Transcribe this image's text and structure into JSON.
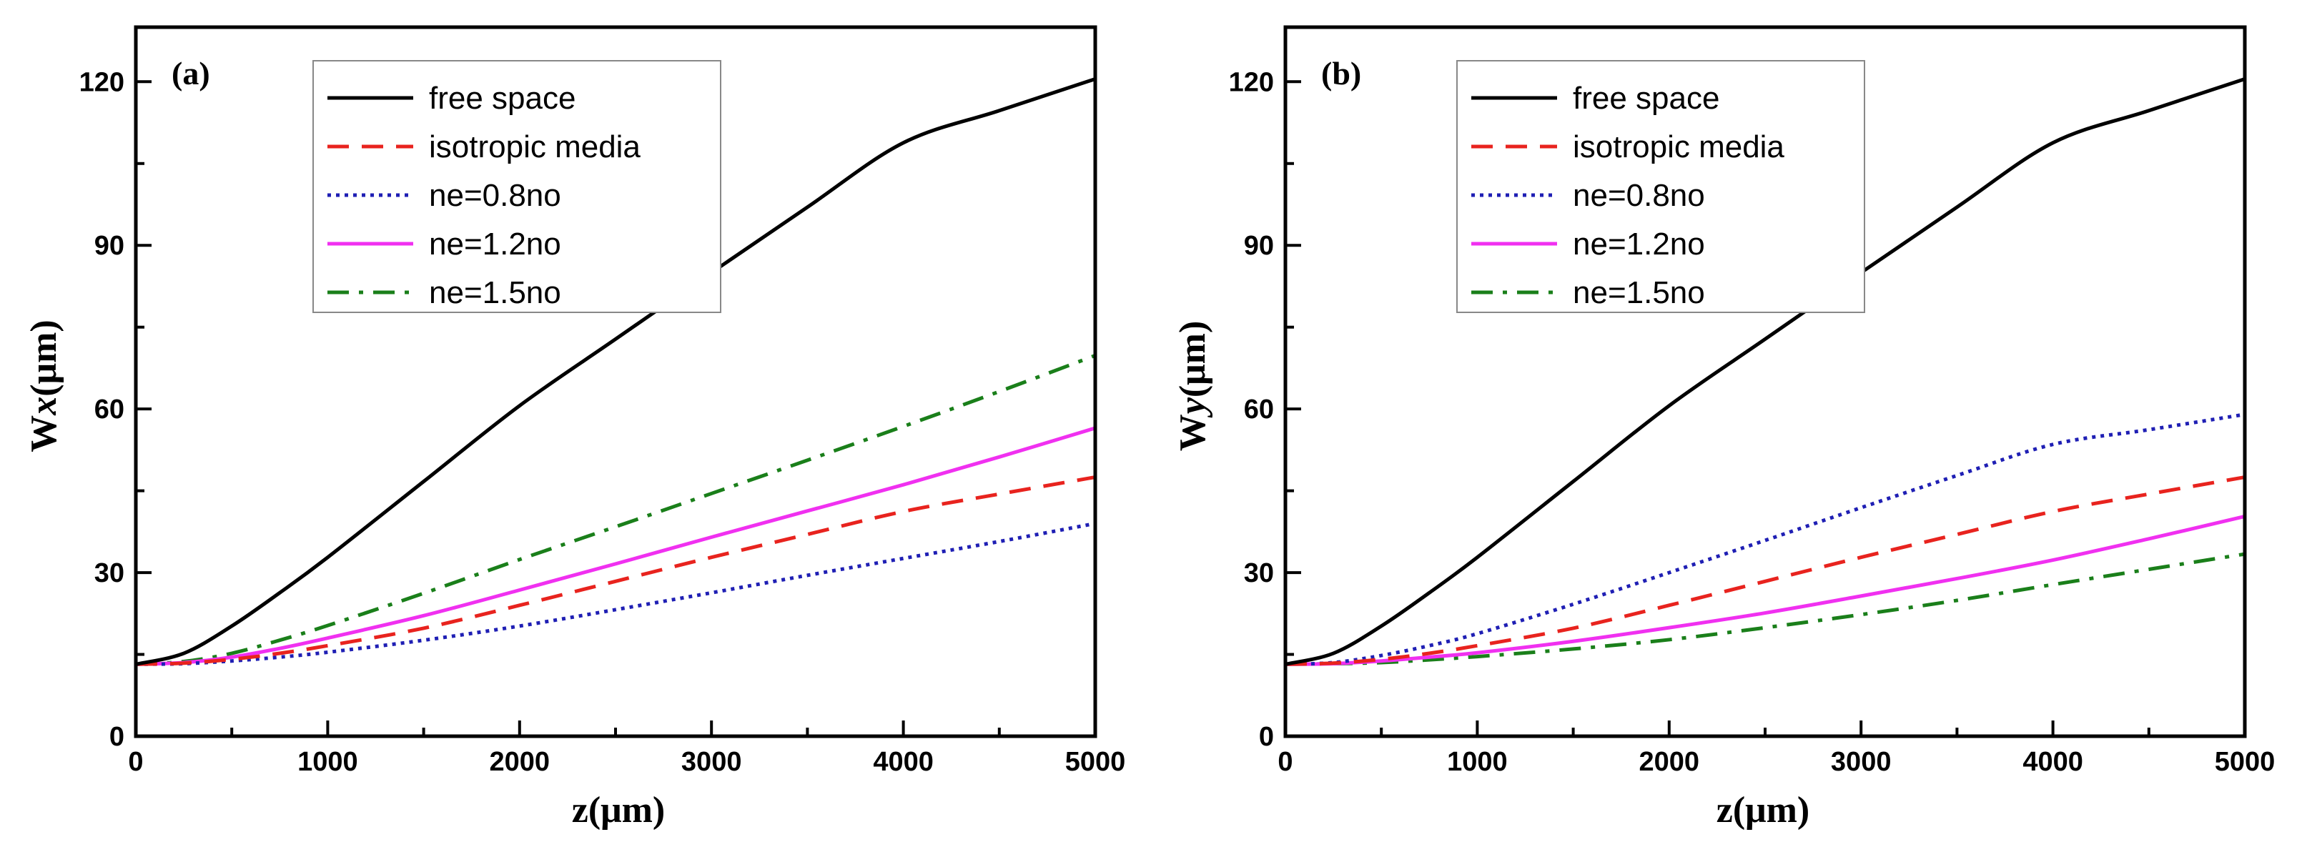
{
  "colors": {
    "free_space": "#000000",
    "isotropic": "#e8231e",
    "ne08": "#1f1fb4",
    "ne12": "#f030f0",
    "ne15": "#1a7f1a"
  },
  "chart_data": [
    {
      "type": "line",
      "panel_label": "(a)",
      "title": "",
      "xlabel": "z(μm)",
      "ylabel": {
        "prefix": "W",
        "italic": "x",
        "suffix": "(μm)"
      },
      "xlim": [
        0,
        5000
      ],
      "ylim": [
        0,
        130
      ],
      "xticks": [
        0,
        1000,
        2000,
        3000,
        4000,
        5000
      ],
      "yticks": [
        0,
        30,
        60,
        90,
        120
      ],
      "x": [
        0,
        250,
        500,
        750,
        1000,
        1500,
        2000,
        2500,
        3000,
        3500,
        4000,
        4500,
        5000
      ],
      "legend_position": "top-left",
      "series": [
        {
          "name": "free space",
          "style": "solid",
          "color": "#000000",
          "values": [
            13.2,
            15.2,
            20.2,
            26.3,
            32.8,
            46.7,
            60.6,
            72.8,
            85.0,
            97.0,
            108.8,
            114.7,
            120.5
          ]
        },
        {
          "name": "isotropic media",
          "style": "dashed",
          "color": "#e8231e",
          "values": [
            13.2,
            13.4,
            14.1,
            15.2,
            16.6,
            19.8,
            24.0,
            28.4,
            32.8,
            37.0,
            41.2,
            44.4,
            47.5
          ]
        },
        {
          "name": "ne=0.8no",
          "style": "dotted",
          "color": "#1f1fb4",
          "values": [
            13.2,
            13.3,
            13.8,
            14.5,
            15.4,
            17.6,
            20.2,
            23.2,
            26.3,
            29.5,
            32.6,
            35.7,
            39.0
          ]
        },
        {
          "name": "ne=1.2no",
          "style": "solid",
          "color": "#f030f0",
          "values": [
            13.2,
            13.5,
            14.5,
            16.1,
            18.0,
            22.1,
            26.8,
            31.6,
            36.5,
            41.3,
            46.1,
            51.2,
            56.5
          ]
        },
        {
          "name": "ne=1.5no",
          "style": "dashdot",
          "color": "#1a7f1a",
          "values": [
            13.2,
            13.7,
            15.2,
            17.6,
            20.3,
            26.2,
            32.4,
            38.4,
            44.5,
            50.6,
            56.8,
            63.2,
            69.8
          ]
        }
      ]
    },
    {
      "type": "line",
      "panel_label": "(b)",
      "title": "",
      "xlabel": "z(μm)",
      "ylabel": {
        "prefix": "W",
        "italic": "y",
        "suffix": "(μm)"
      },
      "xlim": [
        0,
        5000
      ],
      "ylim": [
        0,
        130
      ],
      "xticks": [
        0,
        1000,
        2000,
        3000,
        4000,
        5000
      ],
      "yticks": [
        0,
        30,
        60,
        90,
        120
      ],
      "x": [
        0,
        250,
        500,
        750,
        1000,
        1500,
        2000,
        2500,
        3000,
        3500,
        4000,
        4500,
        5000
      ],
      "legend_position": "top-left",
      "series": [
        {
          "name": "free space",
          "style": "solid",
          "color": "#000000",
          "values": [
            13.2,
            15.2,
            20.2,
            26.3,
            32.8,
            46.7,
            60.6,
            72.8,
            85.0,
            97.0,
            108.8,
            114.7,
            120.5
          ]
        },
        {
          "name": "isotropic media",
          "style": "dashed",
          "color": "#e8231e",
          "values": [
            13.2,
            13.4,
            14.1,
            15.2,
            16.6,
            19.8,
            24.0,
            28.4,
            32.8,
            37.0,
            41.2,
            44.4,
            47.5
          ]
        },
        {
          "name": "ne=0.8no",
          "style": "dotted",
          "color": "#1f1fb4",
          "values": [
            13.2,
            13.5,
            14.8,
            16.6,
            18.8,
            24.2,
            30.0,
            35.9,
            41.9,
            47.8,
            53.5,
            56.2,
            59.0
          ]
        },
        {
          "name": "ne=1.2no",
          "style": "solid",
          "color": "#f030f0",
          "values": [
            13.2,
            13.3,
            13.8,
            14.5,
            15.3,
            17.4,
            19.9,
            22.6,
            25.7,
            28.9,
            32.3,
            36.2,
            40.3
          ]
        },
        {
          "name": "ne=1.5no",
          "style": "dashdot",
          "color": "#1a7f1a",
          "values": [
            13.2,
            13.3,
            13.5,
            14.0,
            14.6,
            16.0,
            17.7,
            19.9,
            22.3,
            24.9,
            27.8,
            30.6,
            33.4
          ]
        }
      ]
    }
  ]
}
